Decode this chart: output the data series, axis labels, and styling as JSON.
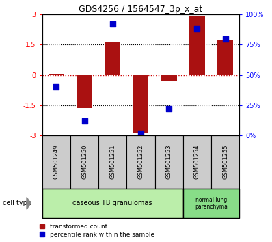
{
  "title": "GDS4256 / 1564547_3p_x_at",
  "samples": [
    "GSM501249",
    "GSM501250",
    "GSM501251",
    "GSM501252",
    "GSM501253",
    "GSM501254",
    "GSM501255"
  ],
  "transformed_counts": [
    0.05,
    -1.65,
    1.65,
    -2.85,
    -0.3,
    2.95,
    1.75
  ],
  "percentile_ranks": [
    40,
    12,
    92,
    2,
    22,
    88,
    80
  ],
  "ylim_left": [
    -3,
    3
  ],
  "ylim_right": [
    0,
    100
  ],
  "yticks_left": [
    -3,
    -1.5,
    0,
    1.5,
    3
  ],
  "yticks_right": [
    0,
    25,
    50,
    75,
    100
  ],
  "ytick_labels_left": [
    "-3",
    "-1.5",
    "0",
    "1.5",
    "3"
  ],
  "ytick_labels_right": [
    "0%",
    "25%",
    "50%",
    "75%",
    "100%"
  ],
  "bar_color": "#aa1111",
  "dot_color": "#0000cc",
  "hline_color": "#cc0000",
  "bar_width": 0.55,
  "dot_size": 30,
  "group1_color": "#bbeeaa",
  "group2_color": "#88dd88",
  "sample_box_color": "#cccccc"
}
